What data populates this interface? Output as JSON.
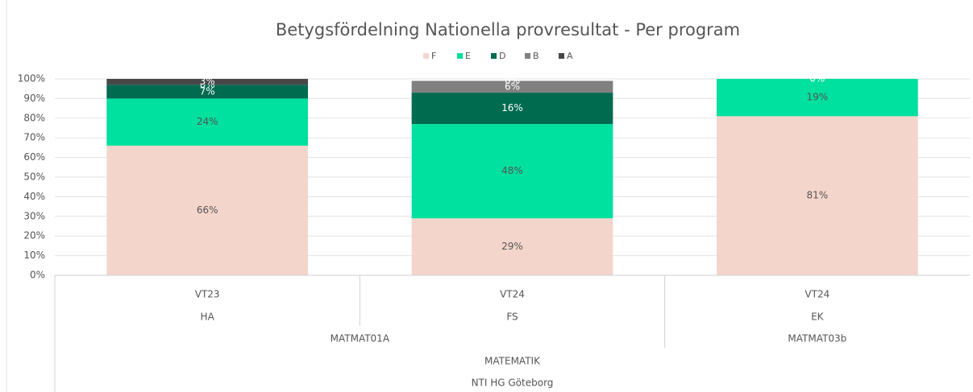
{
  "chart_data": {
    "type": "stacked_bar",
    "title": "Betygsfördelning Nationella provresultat - Per program",
    "categories": [
      "VT23",
      "VT24",
      "VT24"
    ],
    "subcategories": [
      "HA",
      "FS",
      "EK"
    ],
    "groups": [
      {
        "label": "MATMAT01A",
        "span": 2
      },
      {
        "label": "MATMAT03b",
        "span": 1
      }
    ],
    "supergroups": [
      "MATEMATIK",
      "NTI HG Göteborg"
    ],
    "series": [
      {
        "name": "F",
        "color": "#f4d5cc",
        "values": [
          66,
          29,
          81
        ],
        "value_labels": [
          "66%",
          "29%",
          "81%"
        ]
      },
      {
        "name": "E",
        "color": "#00e09e",
        "values": [
          24,
          48,
          19
        ],
        "value_labels": [
          "24%",
          "48%",
          "19%"
        ]
      },
      {
        "name": "D",
        "color": "#006b4f",
        "values": [
          7,
          16,
          0
        ],
        "value_labels": [
          "7%",
          "16%",
          "0%"
        ]
      },
      {
        "name": "B",
        "color": "#808080",
        "values": [
          0,
          6,
          null
        ],
        "value_labels": [
          "0%",
          "6%",
          null
        ]
      },
      {
        "name": "A",
        "color": "#474747",
        "values": [
          3,
          0,
          null
        ],
        "value_labels": [
          "3%",
          "0%",
          null
        ]
      }
    ],
    "ylim": [
      0,
      100
    ],
    "yticks": [
      {
        "value": 0,
        "label": "0%"
      },
      {
        "value": 10,
        "label": "10%"
      },
      {
        "value": 20,
        "label": "20%"
      },
      {
        "value": 30,
        "label": "30%"
      },
      {
        "value": 40,
        "label": "40%"
      },
      {
        "value": 50,
        "label": "50%"
      },
      {
        "value": 60,
        "label": "60%"
      },
      {
        "value": 70,
        "label": "70%"
      },
      {
        "value": 80,
        "label": "80%"
      },
      {
        "value": 90,
        "label": "90%"
      },
      {
        "value": 100,
        "label": "100%"
      }
    ],
    "grid": true,
    "legend": "top"
  }
}
